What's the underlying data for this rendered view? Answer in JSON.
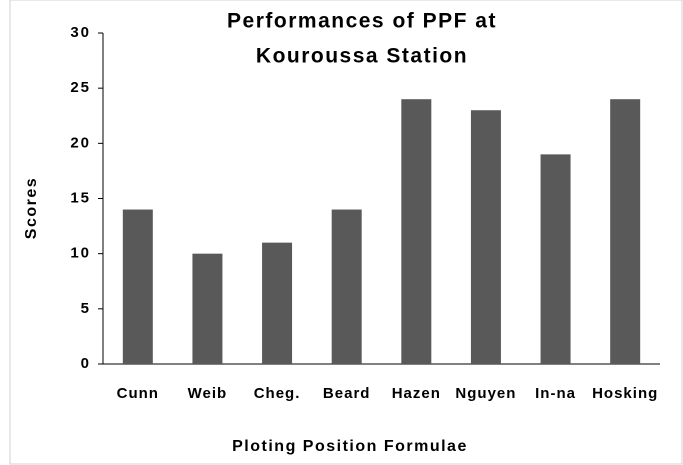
{
  "chart_data": {
    "type": "bar",
    "title": [
      "Performances of PPF at",
      "Kouroussa Station"
    ],
    "x_label": "Ploting Position Formulae",
    "y_label": "Scores",
    "categories": [
      "Cunn",
      "Weib",
      "Cheg.",
      "Beard",
      "Hazen",
      "Nguyen",
      "In-na",
      "Hosking"
    ],
    "values": [
      14,
      10,
      11,
      14,
      24,
      23,
      19,
      24
    ],
    "color": "#595959",
    "ylim": [
      0,
      30
    ],
    "yticks": [
      0,
      5,
      10,
      15,
      20,
      25,
      30
    ],
    "grid": false
  }
}
